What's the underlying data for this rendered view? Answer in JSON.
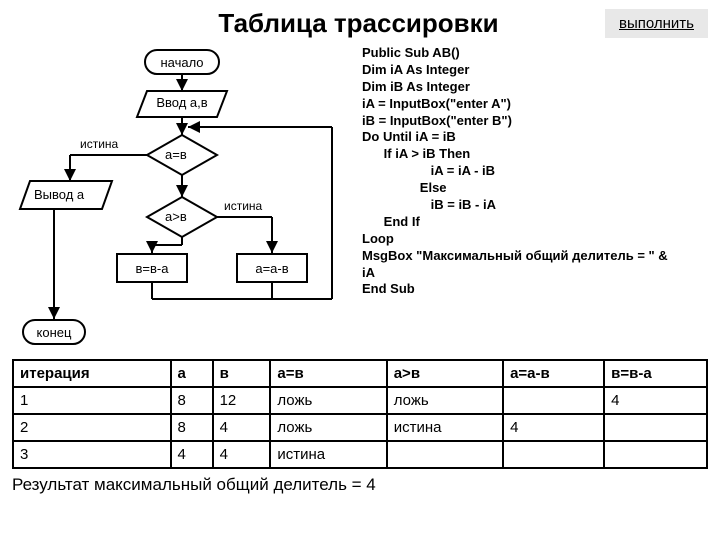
{
  "title": "Таблица трассировки",
  "exec_button": "выполнить",
  "flow": {
    "start": "начало",
    "input": "Ввод а,в",
    "cond1": "а=в",
    "cond2": "а>в",
    "proc_left": "в=в-а",
    "proc_right": "а=а-в",
    "output": "Вывод а",
    "end": "конец",
    "lbl_true1": "истина",
    "lbl_true2": "истина"
  },
  "code_lines": [
    "Public Sub AB()",
    "Dim iA As Integer",
    "Dim iB As Integer",
    "iA = InputBox(\"enter A\")",
    "iB = InputBox(\"enter B\")",
    "Do Until iA = iB",
    "      If iA > iB Then",
    "                   iA = iA - iB",
    "                Else",
    "                   iB = iB - iA",
    "      End If",
    "Loop",
    "MsgBox \"Максимальный общий делитель = \" & ",
    "iA",
    "End Sub"
  ],
  "table": {
    "columns": [
      "итерация",
      "а",
      "в",
      "а=в",
      "а>в",
      "а=а-в",
      "в=в-а"
    ],
    "rows": [
      [
        "1",
        "8",
        "12",
        "ложь",
        "ложь",
        "",
        "4"
      ],
      [
        "2",
        "8",
        "4",
        "ложь",
        "истина",
        "4",
        ""
      ],
      [
        "3",
        "4",
        "4",
        "истина",
        "",
        "",
        ""
      ]
    ]
  },
  "result": "Результат максимальный общий делитель = 4",
  "colors": {
    "btn_bg": "#e8e8e8",
    "line": "#000000",
    "bg": "#ffffff"
  }
}
